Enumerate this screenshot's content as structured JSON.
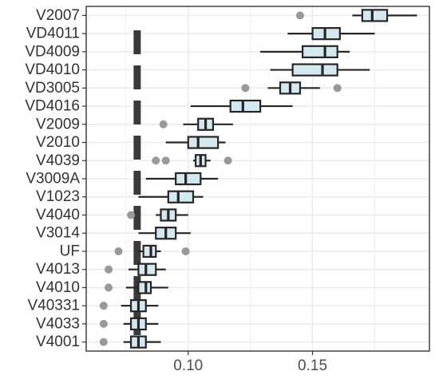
{
  "chart_data": {
    "type": "boxplot",
    "orientation": "horizontal",
    "xlim": [
      0.059,
      0.197
    ],
    "x_ticks": [
      0.1,
      0.15
    ],
    "x_tick_labels": [
      "0.10",
      "0.15"
    ],
    "grid": true,
    "reference_line": {
      "style": "dashed",
      "color": "#3a3a3a",
      "x": 0.0795
    },
    "colors": {
      "box_fill": "#d4e8ef",
      "box_stroke": "#262626",
      "outlier": "#999999",
      "grid": "#ebebeb",
      "panel_border": "#333333"
    },
    "categories": [
      "V2007",
      "VD4011",
      "VD4009",
      "VD4010",
      "VD3005",
      "VD4016",
      "V2009",
      "V2010",
      "V4039",
      "V3009A",
      "V1023",
      "V4040",
      "V3014",
      "UF",
      "V4013",
      "V4010",
      "V40331",
      "V4033",
      "V4001"
    ],
    "boxes": [
      {
        "label": "V2007",
        "whisker_low": 0.166,
        "q1": 0.17,
        "median": 0.174,
        "q3": 0.18,
        "whisker_high": 0.192,
        "outliers": [
          0.145
        ]
      },
      {
        "label": "VD4011",
        "whisker_low": 0.14,
        "q1": 0.15,
        "median": 0.155,
        "q3": 0.161,
        "whisker_high": 0.175,
        "outliers": []
      },
      {
        "label": "VD4009",
        "whisker_low": 0.129,
        "q1": 0.146,
        "median": 0.155,
        "q3": 0.16,
        "whisker_high": 0.165,
        "outliers": []
      },
      {
        "label": "VD4010",
        "whisker_low": 0.133,
        "q1": 0.142,
        "median": 0.154,
        "q3": 0.16,
        "whisker_high": 0.173,
        "outliers": []
      },
      {
        "label": "VD3005",
        "whisker_low": 0.132,
        "q1": 0.137,
        "median": 0.141,
        "q3": 0.145,
        "whisker_high": 0.153,
        "outliers": [
          0.123,
          0.16
        ]
      },
      {
        "label": "VD4016",
        "whisker_low": 0.101,
        "q1": 0.117,
        "median": 0.122,
        "q3": 0.129,
        "whisker_high": 0.142,
        "outliers": []
      },
      {
        "label": "V2009",
        "whisker_low": 0.098,
        "q1": 0.104,
        "median": 0.107,
        "q3": 0.11,
        "whisker_high": 0.118,
        "outliers": [
          0.09
        ]
      },
      {
        "label": "V2010",
        "whisker_low": 0.091,
        "q1": 0.1,
        "median": 0.104,
        "q3": 0.112,
        "whisker_high": 0.115,
        "outliers": []
      },
      {
        "label": "V4039",
        "whisker_low": 0.102,
        "q1": 0.103,
        "median": 0.105,
        "q3": 0.107,
        "whisker_high": 0.109,
        "outliers": [
          0.087,
          0.091,
          0.116
        ]
      },
      {
        "label": "V3009A",
        "whisker_low": 0.083,
        "q1": 0.095,
        "median": 0.099,
        "q3": 0.105,
        "whisker_high": 0.112,
        "outliers": []
      },
      {
        "label": "V1023",
        "whisker_low": 0.08,
        "q1": 0.092,
        "median": 0.096,
        "q3": 0.102,
        "whisker_high": 0.106,
        "outliers": []
      },
      {
        "label": "V4040",
        "whisker_low": 0.087,
        "q1": 0.089,
        "median": 0.092,
        "q3": 0.095,
        "whisker_high": 0.1,
        "outliers": [
          0.077
        ]
      },
      {
        "label": "V3014",
        "whisker_low": 0.08,
        "q1": 0.087,
        "median": 0.091,
        "q3": 0.095,
        "whisker_high": 0.101,
        "outliers": []
      },
      {
        "label": "UF",
        "whisker_low": 0.08,
        "q1": 0.082,
        "median": 0.085,
        "q3": 0.087,
        "whisker_high": 0.089,
        "outliers": [
          0.072,
          0.099
        ]
      },
      {
        "label": "V4013",
        "whisker_low": 0.076,
        "q1": 0.08,
        "median": 0.083,
        "q3": 0.087,
        "whisker_high": 0.091,
        "outliers": [
          0.068
        ]
      },
      {
        "label": "V4010",
        "whisker_low": 0.075,
        "q1": 0.08,
        "median": 0.083,
        "q3": 0.085,
        "whisker_high": 0.092,
        "outliers": [
          0.068
        ]
      },
      {
        "label": "V40331",
        "whisker_low": 0.073,
        "q1": 0.077,
        "median": 0.08,
        "q3": 0.083,
        "whisker_high": 0.088,
        "outliers": [
          0.066
        ]
      },
      {
        "label": "V4033",
        "whisker_low": 0.074,
        "q1": 0.077,
        "median": 0.08,
        "q3": 0.083,
        "whisker_high": 0.088,
        "outliers": [
          0.066
        ]
      },
      {
        "label": "V4001",
        "whisker_low": 0.074,
        "q1": 0.077,
        "median": 0.08,
        "q3": 0.083,
        "whisker_high": 0.089,
        "outliers": [
          0.066
        ]
      }
    ]
  }
}
